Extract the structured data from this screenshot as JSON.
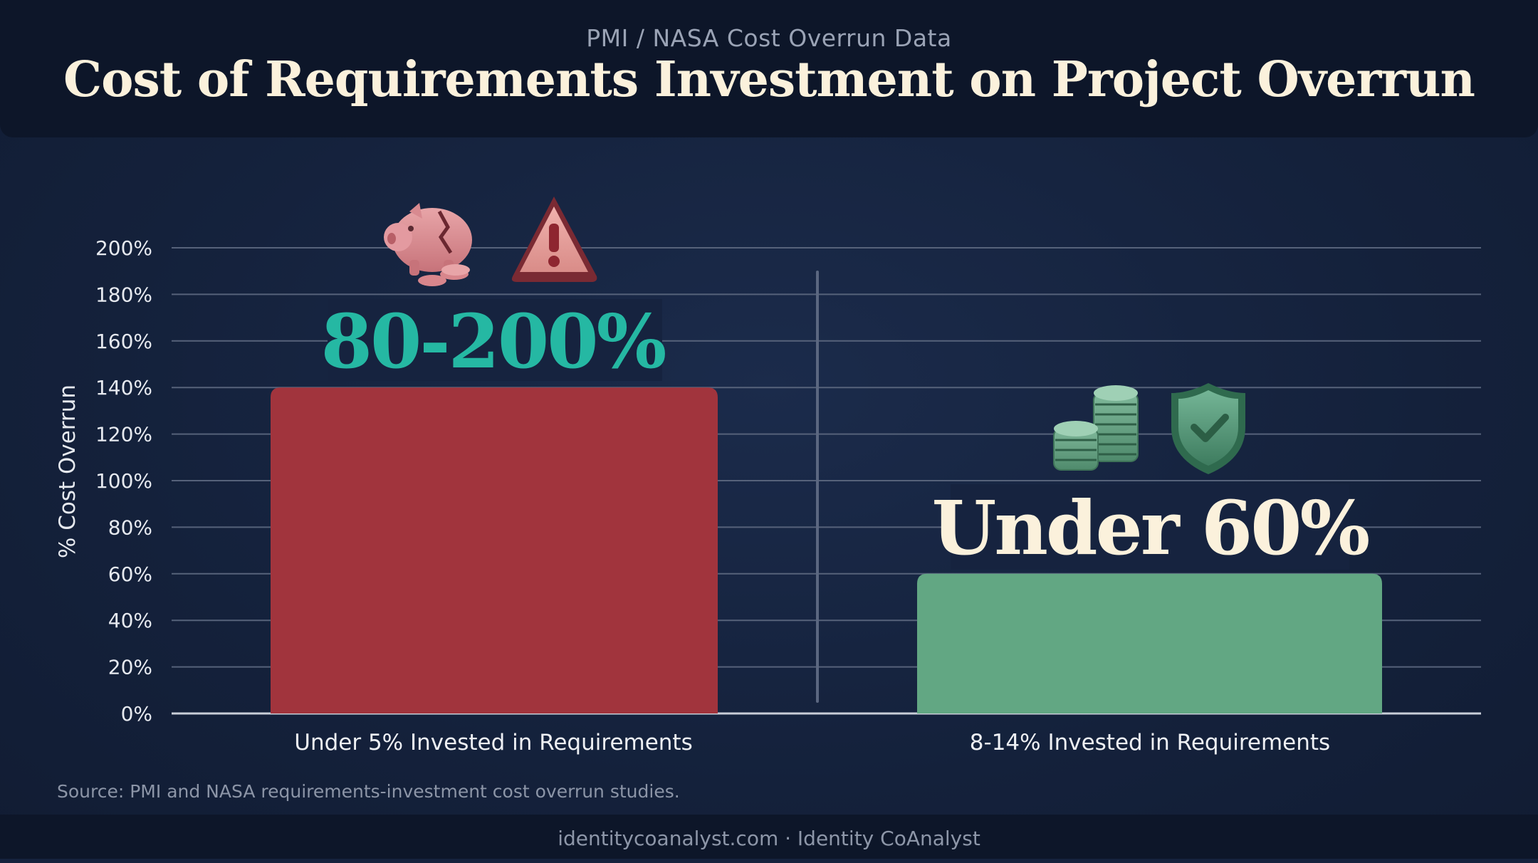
{
  "header": {
    "subtitle": "PMI / NASA Cost Overrun Data",
    "title": "Cost of Requirements Investment on Project Overrun"
  },
  "source": "Source: PMI and NASA requirements-investment cost overrun studies.",
  "footer": "identitycoanalyst.com · Identity CoAnalyst",
  "colors": {
    "bar_low_investment": "#a1343d",
    "bar_high_investment": "#62a783",
    "callout_low": "#25b8a3",
    "callout_high": "#fbf1dc"
  },
  "icons": {
    "left": [
      "broken-piggy-bank-icon",
      "warning-triangle-icon"
    ],
    "right": [
      "coin-stacks-icon",
      "shield-check-icon"
    ]
  },
  "chart_data": {
    "type": "bar",
    "ylabel": "% Cost Overrun",
    "ylim": [
      0,
      200
    ],
    "yticks": [
      "0%",
      "20%",
      "40%",
      "60%",
      "80%",
      "100%",
      "120%",
      "140%",
      "160%",
      "180%",
      "200%"
    ],
    "categories": [
      "Under 5% Invested in Requirements",
      "8-14% Invested in Requirements"
    ],
    "values": [
      140,
      60
    ],
    "annotations": [
      "80-200%",
      "Under 60%"
    ],
    "grid": true
  }
}
